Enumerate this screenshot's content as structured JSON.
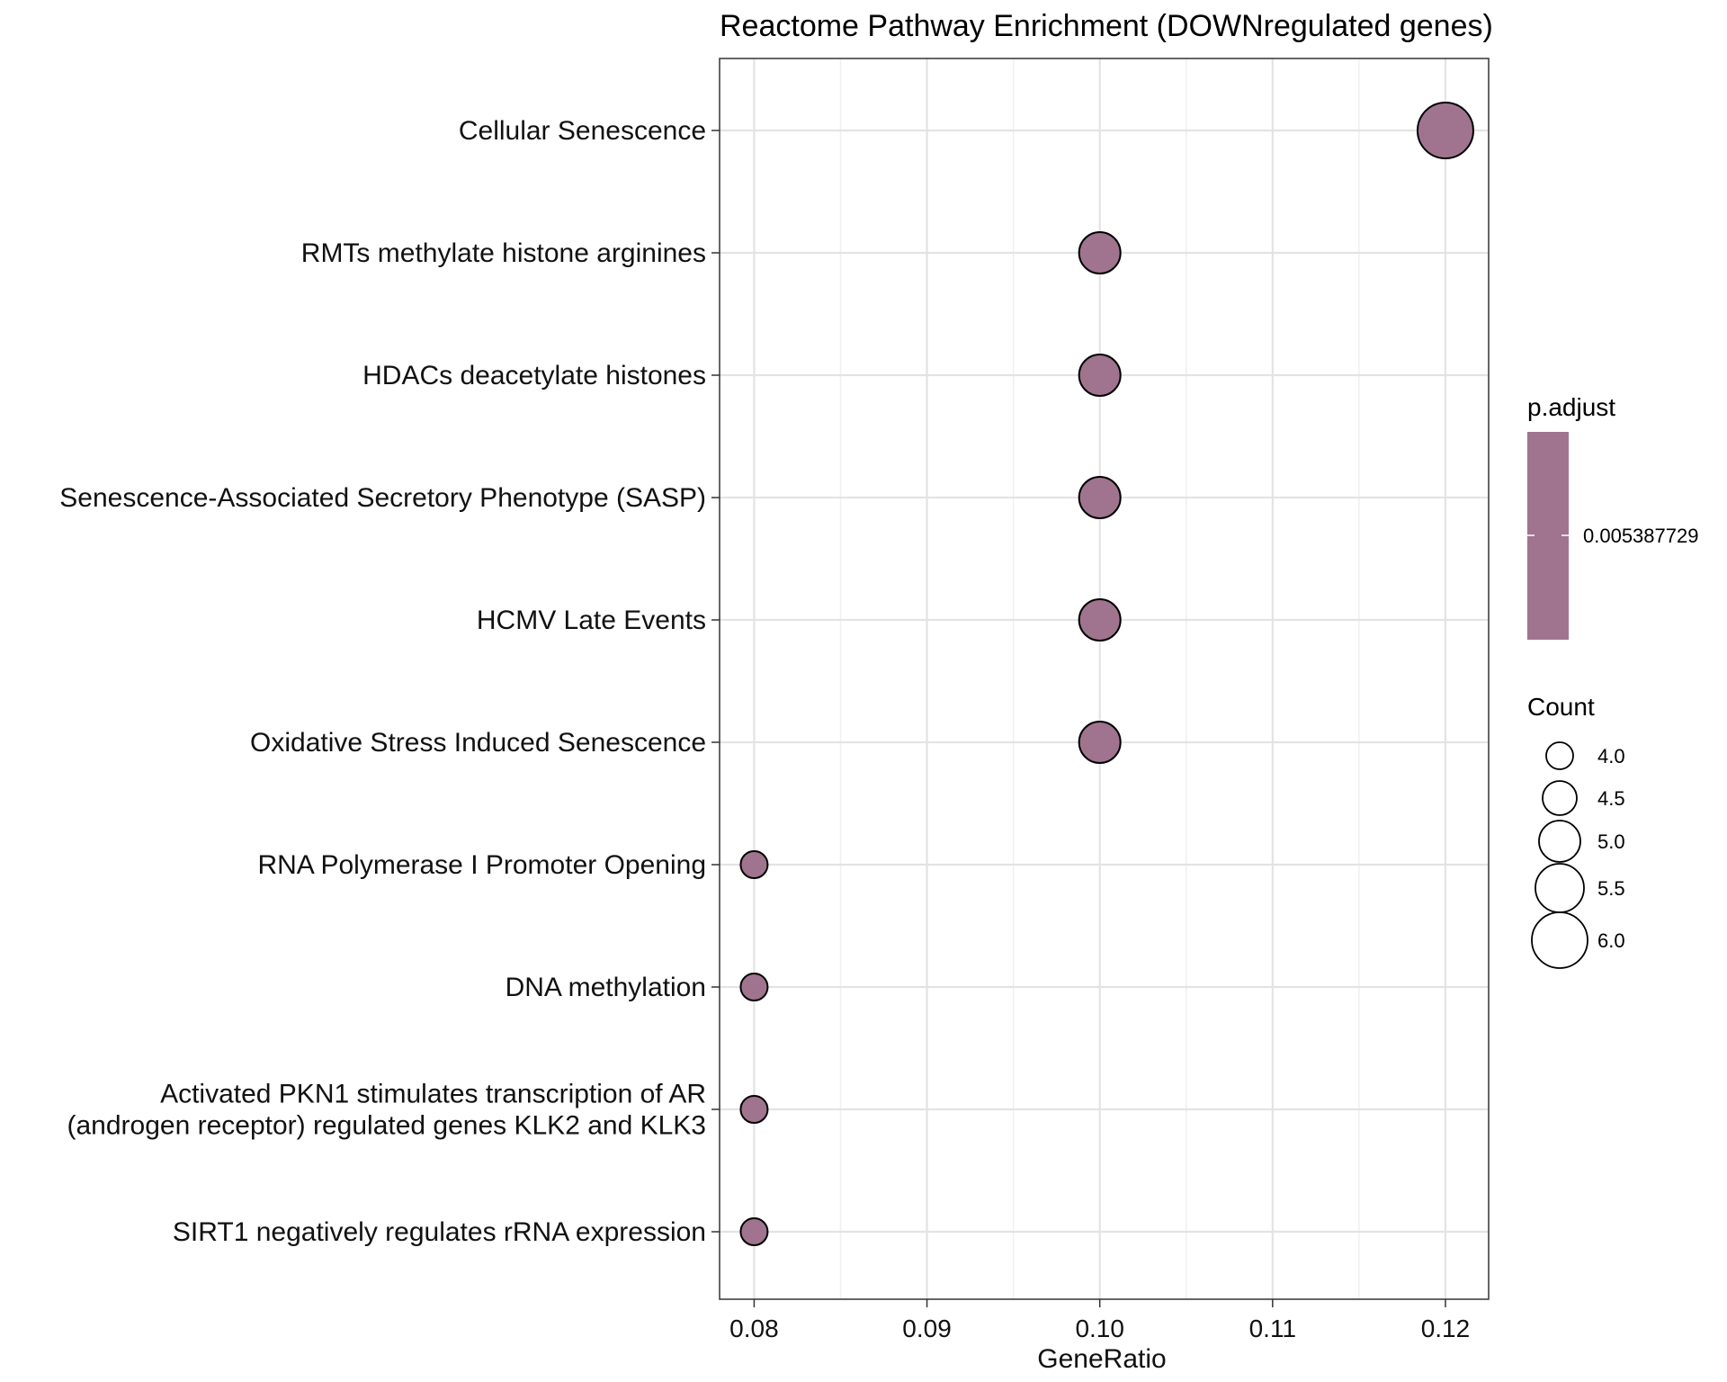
{
  "chart_data": {
    "type": "scatter",
    "title": "Reactome Pathway Enrichment (DOWNregulated genes)",
    "xlabel": "GeneRatio",
    "ylabel": "",
    "xlim": [
      0.078,
      0.1225
    ],
    "xticks": [
      "0.08",
      "0.09",
      "0.10",
      "0.11",
      "0.12"
    ],
    "xtick_values": [
      0.08,
      0.09,
      0.1,
      0.11,
      0.12
    ],
    "grid": true,
    "legend_position": "right",
    "point_color": "#A0748E",
    "categories": [
      [
        "Cellular Senescence"
      ],
      [
        "RMTs methylate histone arginines"
      ],
      [
        "HDACs deacetylate histones"
      ],
      [
        "Senescence-Associated Secretory Phenotype (SASP)"
      ],
      [
        "HCMV Late Events"
      ],
      [
        "Oxidative Stress Induced Senescence"
      ],
      [
        "RNA Polymerase I Promoter Opening"
      ],
      [
        "DNA methylation"
      ],
      [
        "Activated PKN1 stimulates transcription of AR",
        "(androgen receptor) regulated genes KLK2 and KLK3"
      ],
      [
        "SIRT1 negatively regulates rRNA expression"
      ]
    ],
    "series": [
      {
        "gene_ratio": [
          0.12,
          0.1,
          0.1,
          0.1,
          0.1,
          0.1,
          0.08,
          0.08,
          0.08,
          0.08
        ],
        "count": [
          6,
          5,
          5,
          5,
          5,
          5,
          4,
          4,
          4,
          4
        ],
        "p_adjust": [
          0.005387729,
          0.005387729,
          0.005387729,
          0.005387729,
          0.005387729,
          0.005387729,
          0.005387729,
          0.005387729,
          0.005387729,
          0.005387729
        ]
      }
    ],
    "color_legend": {
      "title": "p.adjust",
      "label": "0.005387729",
      "color": "#A0748E"
    },
    "size_legend": {
      "title": "Count",
      "labels": [
        "4.0",
        "4.5",
        "5.0",
        "5.5",
        "6.0"
      ],
      "values": [
        4.0,
        4.5,
        5.0,
        5.5,
        6.0
      ]
    }
  }
}
